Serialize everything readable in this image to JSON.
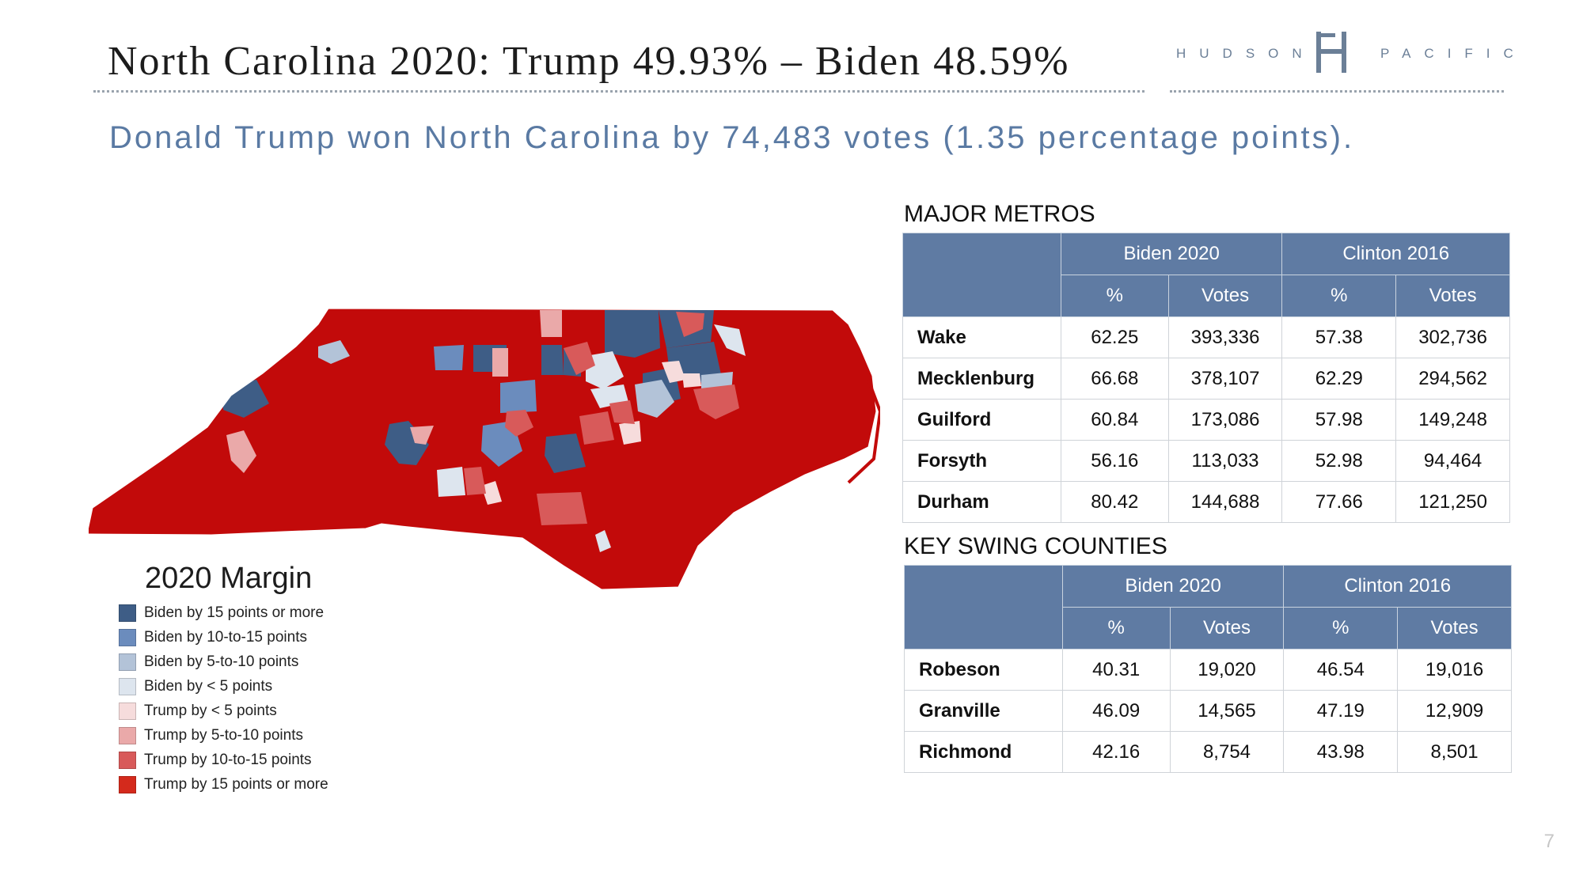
{
  "header": {
    "title": "North Carolina 2020: Trump 49.93% – Biden 48.59%",
    "subtitle": "Donald Trump won North Carolina by 74,483 votes (1.35 percentage points).",
    "logo_left": "HUDSON",
    "logo_right": "PACIFIC"
  },
  "colors": {
    "biden15": "#3e5d86",
    "biden10": "#6b8cbd",
    "biden5": "#b3c3d8",
    "biden0": "#dde5ee",
    "trump0": "#f6dcdc",
    "trump5": "#eaa9a9",
    "trump10": "#d85a5a",
    "trump15": "#c20a0a"
  },
  "legend": {
    "title": "2020 Margin",
    "items": [
      {
        "label": "Biden by 15 points or more",
        "color": "#3e5d86"
      },
      {
        "label": "Biden by 10-to-15 points",
        "color": "#6b8cbd"
      },
      {
        "label": "Biden by 5-to-10 points",
        "color": "#b3c3d8"
      },
      {
        "label": "Biden by < 5 points",
        "color": "#dde5ee"
      },
      {
        "label": "Trump by < 5 points",
        "color": "#f6dcdc"
      },
      {
        "label": "Trump by 5-to-10 points",
        "color": "#eaa9a9"
      },
      {
        "label": "Trump by 10-to-15 points",
        "color": "#d85a5a"
      },
      {
        "label": "Trump by 15 points or more",
        "color": "#d42a1c"
      }
    ]
  },
  "metros": {
    "title": "MAJOR METROS",
    "group1": "Biden 2020",
    "group2": "Clinton 2016",
    "col_pct": "%",
    "col_votes": "Votes",
    "rows": [
      {
        "name": "Wake",
        "b_pct": "62.25",
        "b_votes": "393,336",
        "c_pct": "57.38",
        "c_votes": "302,736"
      },
      {
        "name": "Mecklenburg",
        "b_pct": "66.68",
        "b_votes": "378,107",
        "c_pct": "62.29",
        "c_votes": "294,562"
      },
      {
        "name": "Guilford",
        "b_pct": "60.84",
        "b_votes": "173,086",
        "c_pct": "57.98",
        "c_votes": "149,248"
      },
      {
        "name": "Forsyth",
        "b_pct": "56.16",
        "b_votes": "113,033",
        "c_pct": "52.98",
        "c_votes": "94,464"
      },
      {
        "name": "Durham",
        "b_pct": "80.42",
        "b_votes": "144,688",
        "c_pct": "77.66",
        "c_votes": "121,250"
      }
    ]
  },
  "swing": {
    "title": "KEY SWING COUNTIES",
    "group1": "Biden 2020",
    "group2": "Clinton 2016",
    "col_pct": "%",
    "col_votes": "Votes",
    "rows": [
      {
        "name": "Robeson",
        "b_pct": "40.31",
        "b_votes": "19,020",
        "c_pct": "46.54",
        "c_votes": "19,016"
      },
      {
        "name": "Granville",
        "b_pct": "46.09",
        "b_votes": "14,565",
        "c_pct": "47.19",
        "c_votes": "12,909"
      },
      {
        "name": "Richmond",
        "b_pct": "42.16",
        "b_votes": "8,754",
        "c_pct": "43.98",
        "c_votes": "8,501"
      }
    ]
  },
  "page_number": "7"
}
